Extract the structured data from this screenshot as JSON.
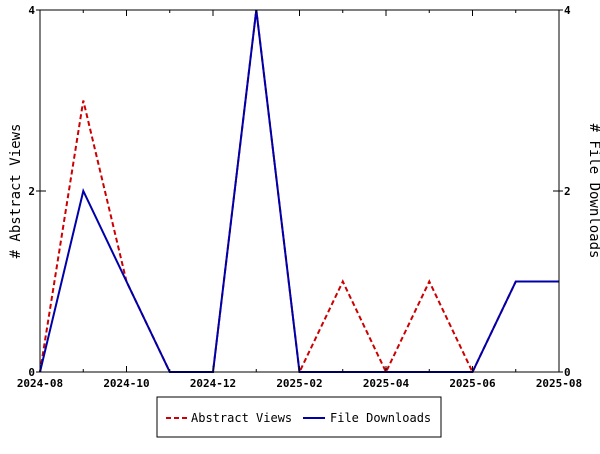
{
  "chart_data": {
    "type": "line",
    "title": "",
    "y_left_label": "# Abstract Views",
    "y_right_label": "# File Downloads",
    "x_tick_labels": [
      "2024-08",
      "2024-10",
      "2024-12",
      "2025-02",
      "2025-04",
      "2025-06",
      "2025-08"
    ],
    "y_left_ticks": [
      "0",
      "2",
      "4"
    ],
    "y_right_ticks": [
      "0",
      "2",
      "4"
    ],
    "ylim": [
      0,
      4
    ],
    "legend_position": "bottom-center",
    "x": [
      "2024-08",
      "2024-09",
      "2024-10",
      "2024-11",
      "2024-12",
      "2025-01",
      "2025-02",
      "2025-03",
      "2025-04",
      "2025-05",
      "2025-06",
      "2025-07",
      "2025-08"
    ],
    "series": [
      {
        "name": "Abstract Views",
        "color": "#cc0000",
        "dash": "dashed",
        "values": [
          0,
          3,
          1,
          0,
          0,
          4,
          0,
          1,
          0,
          1,
          0,
          1,
          1
        ]
      },
      {
        "name": "File Downloads",
        "color": "#0000aa",
        "dash": "solid",
        "values": [
          0,
          2,
          1,
          0,
          0,
          4,
          0,
          0,
          0,
          0,
          0,
          1,
          1
        ]
      }
    ]
  }
}
